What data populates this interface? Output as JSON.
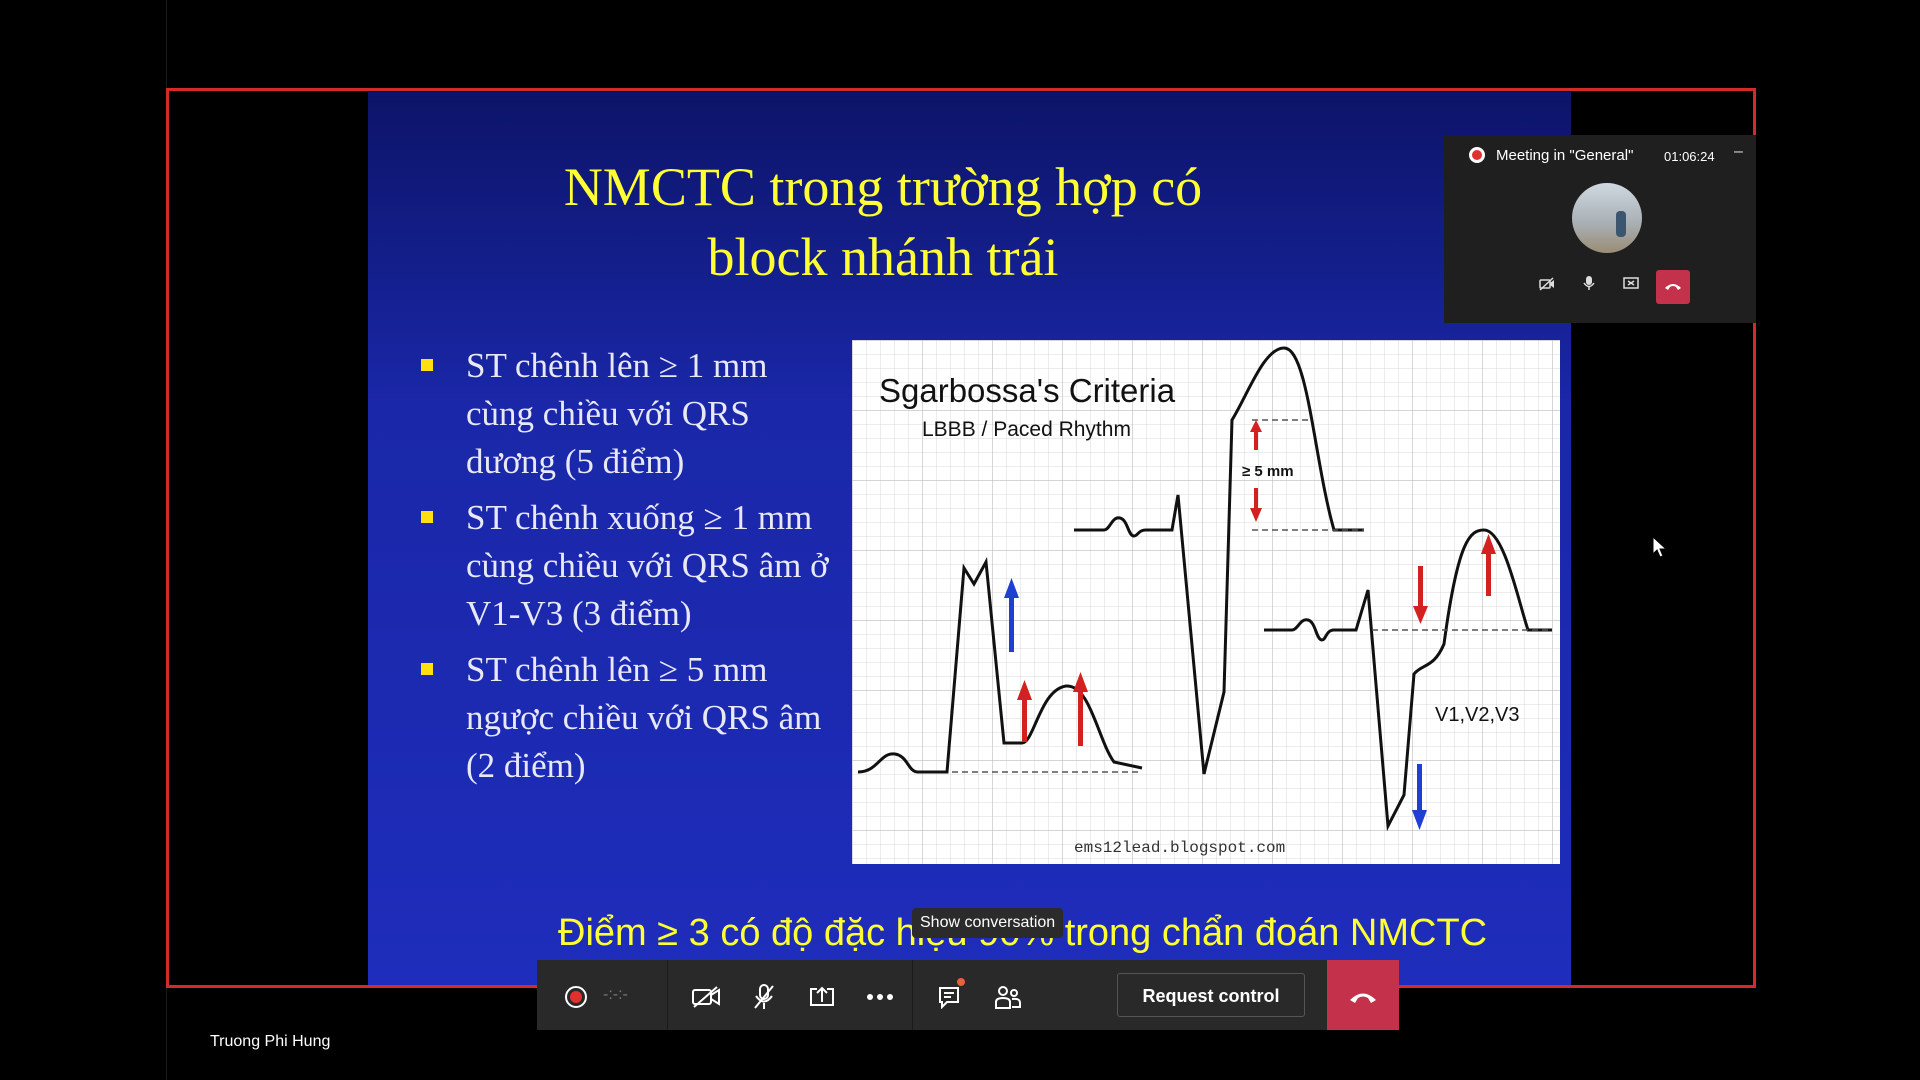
{
  "slide": {
    "title": "NMCTC trong trường hợp có block nhánh trái",
    "bullets": [
      "ST chênh lên ≥ 1 mm cùng chiều với QRS dương (5 điểm)",
      "ST chênh xuống ≥ 1 mm cùng chiều với QRS âm ở V1-V3 (3 điểm)",
      "ST chênh lên ≥ 5 mm ngược chiều với QRS âm (2 điểm)"
    ],
    "footer": "Điểm ≥ 3 có độ đặc hiệu 90% trong chẩn đoán NMCTC"
  },
  "figure": {
    "title": "Sgarbossa's Criteria",
    "subtitle": "LBBB / Paced Rhythm",
    "measure_label": "≥ 5 mm",
    "leads_label": "V1,V2,V3",
    "source": "ems12lead.blogspot.com"
  },
  "tooltip": "Show conversation",
  "mini_window": {
    "title": "Meeting in \"General\"",
    "time": "01:06:24",
    "minimize": "–"
  },
  "controls": {
    "timer": "-:-:-",
    "request_control": "Request control"
  },
  "participant_name": "Truong Phi Hung",
  "icons": [
    "record-icon",
    "camera-off-icon",
    "mic-off-icon",
    "share-screen-icon",
    "more-icon",
    "chat-icon",
    "participants-icon",
    "hang-up-icon"
  ],
  "colors": {
    "frame": "#d42a2a",
    "slide_title": "#ffff33",
    "bullet_mark": "#ffdf10",
    "hangup": "#c4314b"
  }
}
